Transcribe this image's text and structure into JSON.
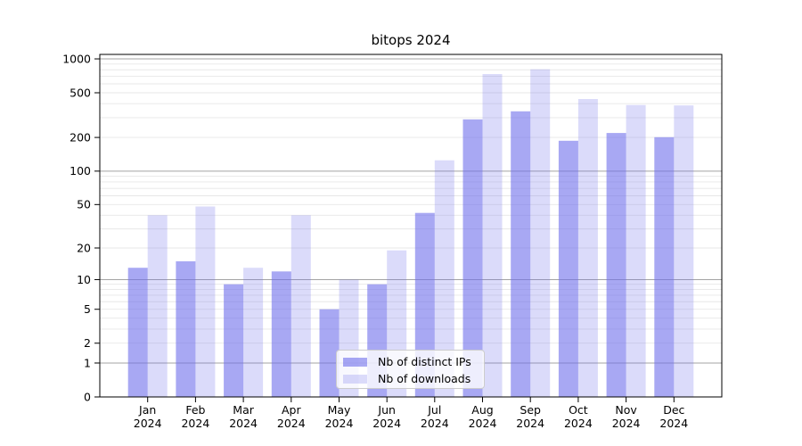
{
  "title": "bitops 2024",
  "colors": {
    "background": "#ffffff",
    "bar_distinct_ips": "rgba(110,110,235,0.6)",
    "bar_downloads": "rgba(110,110,235,0.25)",
    "decade_gridline": "#a3a3a3",
    "minor_gridline": "#e7e7e7",
    "axis_spine": "#000000",
    "legend_border": "#cccccc",
    "legend_background": "rgba(255,255,255,0.8)",
    "text": "#000000"
  },
  "chart_data": {
    "type": "bar",
    "title": "bitops 2024",
    "categories": [
      "Jan",
      "Feb",
      "Mar",
      "Apr",
      "May",
      "Jun",
      "Jul",
      "Aug",
      "Sep",
      "Oct",
      "Nov",
      "Dec"
    ],
    "x_year": "2024",
    "x_tick_labels": [
      "Jan 2024",
      "Feb 2024",
      "Mar 2024",
      "Apr 2024",
      "May 2024",
      "Jun 2024",
      "Jul 2024",
      "Aug 2024",
      "Sep 2024",
      "Oct 2024",
      "Nov 2024",
      "Dec 2024"
    ],
    "series": [
      {
        "name": "Nb of distinct IPs",
        "values": [
          13,
          15,
          9,
          12,
          5,
          9,
          42,
          290,
          342,
          187,
          219,
          201
        ]
      },
      {
        "name": "Nb of downloads",
        "values": [
          40,
          48,
          13,
          40,
          10,
          19,
          125,
          734,
          808,
          440,
          389,
          386
        ]
      }
    ],
    "y_axis": {
      "scale": "symlog-log1p",
      "tick_labels": [
        "0",
        "1",
        "2",
        "5",
        "10",
        "20",
        "50",
        "100",
        "200",
        "500",
        "1000"
      ],
      "ticks": [
        0,
        1,
        2,
        5,
        10,
        20,
        50,
        100,
        200,
        500,
        1000
      ],
      "decade_ticks": [
        1,
        10,
        100,
        1000
      ],
      "minor_ticks": [
        2,
        3,
        4,
        5,
        6,
        7,
        8,
        9,
        20,
        30,
        40,
        50,
        60,
        70,
        80,
        90,
        200,
        300,
        400,
        500,
        600,
        700,
        800,
        900
      ],
      "ylim": [
        0,
        1096
      ]
    },
    "xlabel": "",
    "ylabel": "",
    "grid": true,
    "legend_position": "lower center"
  }
}
